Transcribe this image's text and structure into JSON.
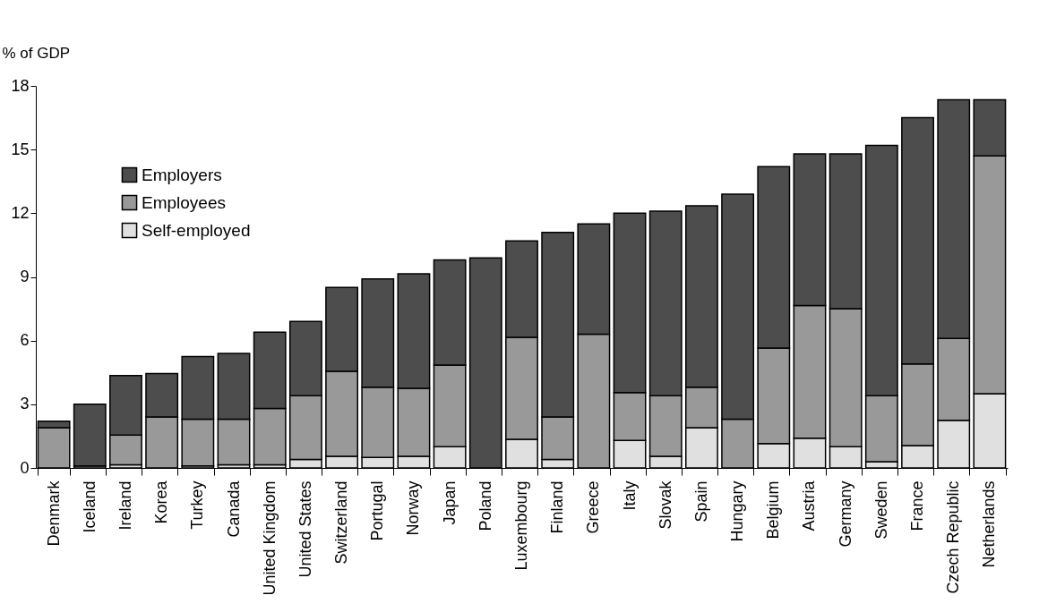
{
  "chart_data": {
    "type": "bar",
    "stacked": true,
    "ylabel": "% of GDP",
    "categories": [
      "Denmark",
      "Iceland",
      "Ireland",
      "Korea",
      "Turkey",
      "Canada",
      "United Kingdom",
      "United States",
      "Switzerland",
      "Portugal",
      "Norway",
      "Japan",
      "Poland",
      "Luxembourg",
      "Finland",
      "Greece",
      "Italy",
      "Slovak",
      "Spain",
      "Hungary",
      "Belgium",
      "Austria",
      "Germany",
      "Sweden",
      "France",
      "Czech Republic",
      "Netherlands"
    ],
    "series": [
      {
        "name": "Self-employed",
        "color": "#e0e0e0",
        "values": [
          0,
          0.1,
          0.15,
          0,
          0.1,
          0.15,
          0.15,
          0.4,
          0.55,
          0.5,
          0.55,
          1.0,
          0,
          1.35,
          0.4,
          0,
          1.3,
          0.55,
          1.9,
          0,
          1.15,
          1.4,
          1.0,
          0.3,
          1.05,
          2.25,
          3.5
        ]
      },
      {
        "name": "Employees",
        "color": "#999999",
        "values": [
          1.9,
          0,
          1.4,
          2.4,
          2.2,
          2.15,
          2.65,
          3.0,
          4.0,
          3.3,
          3.2,
          3.85,
          0,
          4.8,
          2.0,
          6.3,
          2.25,
          2.85,
          1.9,
          2.3,
          4.5,
          6.25,
          6.5,
          3.1,
          3.85,
          3.85,
          11.2
        ]
      },
      {
        "name": "Employers",
        "color": "#4d4d4d",
        "values": [
          0.3,
          2.9,
          2.8,
          2.05,
          2.95,
          3.1,
          3.6,
          3.5,
          3.95,
          5.1,
          5.4,
          4.95,
          9.9,
          4.55,
          8.7,
          5.2,
          8.45,
          8.7,
          8.55,
          10.6,
          8.55,
          7.15,
          7.3,
          11.8,
          11.6,
          11.25,
          2.65
        ]
      }
    ],
    "ylim": [
      0,
      18
    ],
    "yticks": [
      0,
      3,
      6,
      9,
      12,
      15,
      18
    ],
    "grid": false,
    "legend": "top left"
  }
}
